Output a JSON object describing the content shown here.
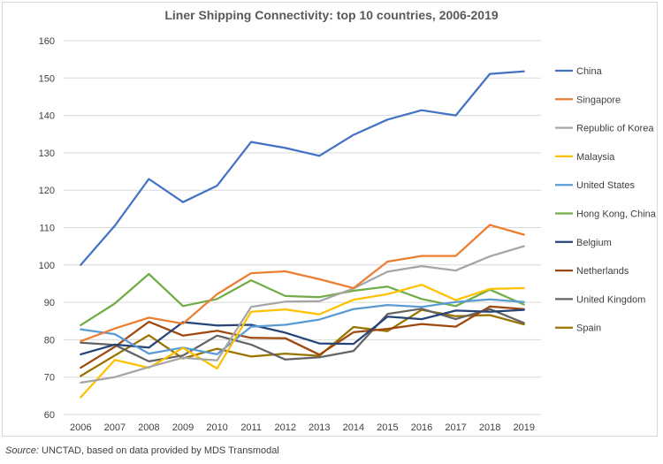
{
  "chart_data": {
    "type": "line",
    "title": "Liner Shipping Connectivity: top 10 countries, 2006-2019",
    "xlabel": "",
    "ylabel": "",
    "ylim": [
      60,
      160
    ],
    "yticks": [
      60,
      70,
      80,
      90,
      100,
      110,
      120,
      130,
      140,
      150,
      160
    ],
    "x": [
      2006,
      2007,
      2008,
      2009,
      2010,
      2011,
      2012,
      2013,
      2014,
      2015,
      2016,
      2017,
      2018,
      2019
    ],
    "grid": "horizontal",
    "legend_position": "right",
    "series": [
      {
        "name": "China",
        "color": "#4472C4",
        "values": [
          100.0,
          110.5,
          123.0,
          116.8,
          121.2,
          132.9,
          131.3,
          129.2,
          134.8,
          138.9,
          141.4,
          140.0,
          151.1,
          151.8
        ]
      },
      {
        "name": "Singapore",
        "color": "#ED7D31",
        "values": [
          79.6,
          83.0,
          85.9,
          84.3,
          92.2,
          97.8,
          98.3,
          96.2,
          93.8,
          100.9,
          102.4,
          102.4,
          110.7,
          108.1
        ]
      },
      {
        "name": "Republic of Korea",
        "color": "#A5A5A5",
        "values": [
          68.5,
          70.0,
          72.7,
          75.2,
          74.5,
          88.8,
          90.2,
          90.3,
          93.7,
          98.2,
          99.7,
          98.5,
          102.3,
          105.0
        ]
      },
      {
        "name": "Malaysia",
        "color": "#FFC000",
        "values": [
          64.6,
          74.6,
          72.5,
          77.8,
          72.3,
          87.5,
          88.1,
          86.8,
          90.7,
          92.2,
          94.7,
          90.6,
          93.6,
          93.8
        ]
      },
      {
        "name": "United States",
        "color": "#5B9BD5",
        "values": [
          82.8,
          81.5,
          76.3,
          77.9,
          76.1,
          83.5,
          84.0,
          85.4,
          88.2,
          89.3,
          88.8,
          90.1,
          90.8,
          90.1
        ]
      },
      {
        "name": "Hong Kong, China",
        "color": "#70AD47",
        "values": [
          83.9,
          89.7,
          97.6,
          89.0,
          90.9,
          95.9,
          91.7,
          91.4,
          93.1,
          94.2,
          90.9,
          89.0,
          93.4,
          89.4
        ]
      },
      {
        "name": "Belgium",
        "color": "#264478",
        "values": [
          76.1,
          78.7,
          77.9,
          84.7,
          83.8,
          84.0,
          81.9,
          79.0,
          78.9,
          86.2,
          85.5,
          87.8,
          87.5,
          88.0
        ]
      },
      {
        "name": "Netherlands",
        "color": "#9E480E",
        "values": [
          72.5,
          78.1,
          84.8,
          81.1,
          82.4,
          80.5,
          80.4,
          76.0,
          82.0,
          82.9,
          84.2,
          83.5,
          88.9,
          88.2
        ]
      },
      {
        "name": "United Kingdom",
        "color": "#636363",
        "values": [
          79.2,
          78.6,
          74.2,
          75.8,
          81.1,
          78.7,
          74.7,
          75.3,
          77.0,
          86.9,
          88.3,
          85.5,
          88.2,
          84.5
        ]
      },
      {
        "name": "Spain",
        "color": "#997300",
        "values": [
          70.3,
          75.8,
          81.2,
          75.0,
          77.6,
          75.5,
          76.3,
          75.7,
          83.4,
          82.3,
          88.0,
          86.3,
          86.6,
          84.1
        ]
      }
    ]
  },
  "source": {
    "label": "Source:",
    "text": " UNCTAD, based on data provided by MDS Transmodal"
  }
}
